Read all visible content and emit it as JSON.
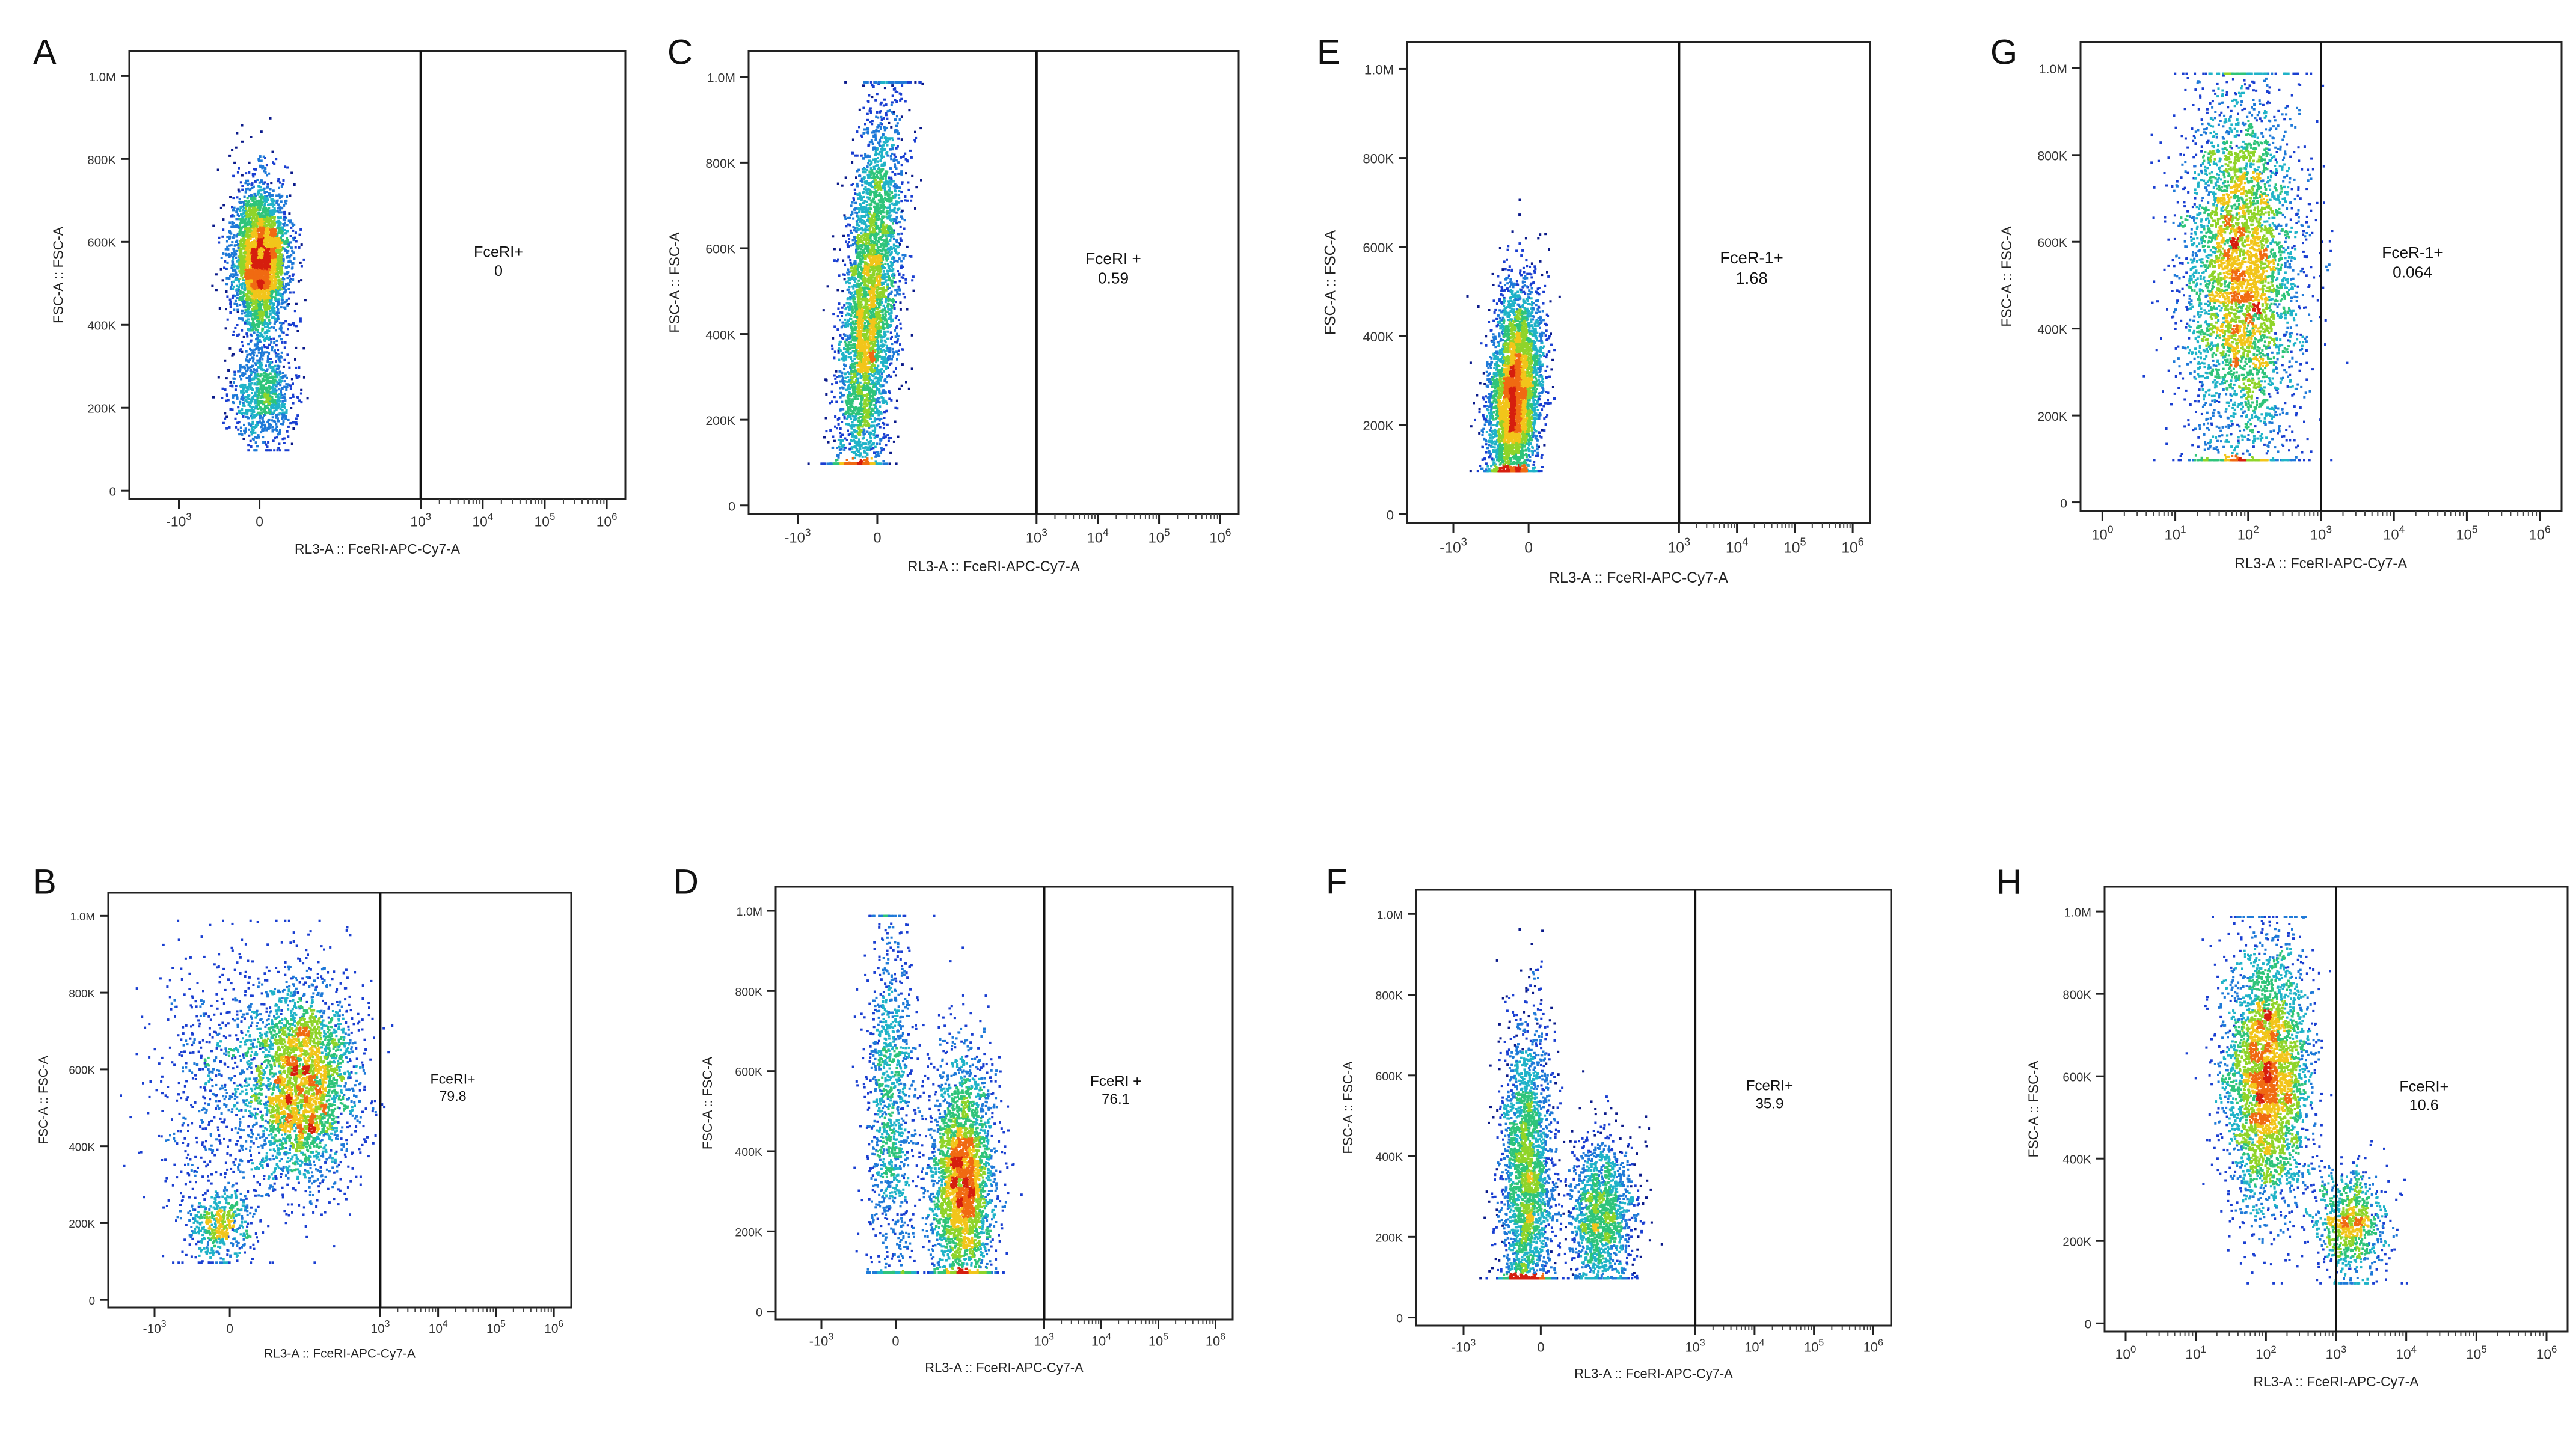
{
  "figure": {
    "description_free": true
  },
  "chart_data": [
    {
      "panel": "A",
      "type": "scatter",
      "x_label": "RL3-A :: FceRI-APC-Cy7-A",
      "y_label": "FSC-A :: FSC-A",
      "x_scale": "biex",
      "y_ticks": [
        "0",
        "200K",
        "400K",
        "600K",
        "800K",
        "1.0M"
      ],
      "y_values": [
        0,
        200000,
        400000,
        600000,
        800000,
        1000000
      ],
      "x_ticks": [
        "-10^3",
        "0",
        "10^3",
        "10^4",
        "10^5",
        "10^6"
      ],
      "gate": {
        "label": "FceRI+",
        "value": "0",
        "threshold_x": "10^3"
      },
      "populations": [
        {
          "x_center": 0.4,
          "x_sd": 0.22,
          "y_center": 560000,
          "y_sd": 90000,
          "weight": 0.8
        },
        {
          "x_center": 0.45,
          "x_sd": 0.25,
          "y_center": 230000,
          "y_sd": 60000,
          "weight": 0.2
        }
      ]
    },
    {
      "panel": "B",
      "type": "scatter",
      "x_label": "RL3-A :: FceRI-APC-Cy7-A",
      "y_label": "FSC-A :: FSC-A",
      "x_scale": "biex",
      "y_ticks": [
        "0",
        "200K",
        "400K",
        "600K",
        "800K",
        "1.0M"
      ],
      "y_values": [
        0,
        200000,
        400000,
        600000,
        800000,
        1000000
      ],
      "x_ticks": [
        "-10^3",
        "0",
        "10^3",
        "10^4",
        "10^5",
        "10^6"
      ],
      "gate": {
        "label": "FceRI+",
        "value": "79.8",
        "threshold_x": "10^3"
      },
      "populations": [
        {
          "x_center": 1.65,
          "x_sd": 0.45,
          "y_center": 570000,
          "y_sd": 130000,
          "weight": 0.7
        },
        {
          "x_center": 0.3,
          "x_sd": 0.6,
          "y_center": 550000,
          "y_sd": 170000,
          "weight": 0.18
        },
        {
          "x_center": 0.2,
          "x_sd": 0.3,
          "y_center": 200000,
          "y_sd": 50000,
          "weight": 0.12
        }
      ]
    },
    {
      "panel": "C",
      "type": "scatter",
      "x_label": "RL3-A :: FceRI-APC-Cy7-A",
      "y_label": "FSC-A :: FSC-A",
      "x_scale": "biex",
      "y_ticks": [
        "0",
        "200K",
        "400K",
        "600K",
        "800K",
        "1.0M"
      ],
      "y_values": [
        0,
        200000,
        400000,
        600000,
        800000,
        1000000
      ],
      "x_ticks": [
        "-10^3",
        "0",
        "10^3",
        "10^4",
        "10^5",
        "10^6"
      ],
      "gate": {
        "label": "FceRI +",
        "value": "0.59",
        "threshold_x": "10^3"
      },
      "populations": [
        {
          "x_center": 0.25,
          "x_sd": 0.22,
          "y_center": 450000,
          "y_sd": 240000,
          "weight": 1.0,
          "slant": 0.5
        }
      ]
    },
    {
      "panel": "D",
      "type": "scatter",
      "x_label": "RL3-A :: FceRI-APC-Cy7-A",
      "y_label": "FSC-A :: FSC-A",
      "x_scale": "biex",
      "y_ticks": [
        "0",
        "200K",
        "400K",
        "600K",
        "800K",
        "1.0M"
      ],
      "y_values": [
        0,
        200000,
        400000,
        600000,
        800000,
        1000000
      ],
      "x_ticks": [
        "-10^3",
        "0",
        "10^3",
        "10^4",
        "10^5",
        "10^6"
      ],
      "gate": {
        "label": "FceRI +",
        "value": "76.1",
        "threshold_x": "10^3"
      },
      "populations": [
        {
          "x_center": 1.55,
          "x_sd": 0.28,
          "y_center": 330000,
          "y_sd": 150000,
          "weight": 0.72
        },
        {
          "x_center": 0.3,
          "x_sd": 0.22,
          "y_center": 520000,
          "y_sd": 240000,
          "weight": 0.28
        }
      ]
    },
    {
      "panel": "E",
      "type": "scatter",
      "x_label": "RL3-A :: FceRI-APC-Cy7-A",
      "y_label": "FSC-A :: FSC-A",
      "x_scale": "biex",
      "y_ticks": [
        "0",
        "200K",
        "400K",
        "600K",
        "800K",
        "1.0M"
      ],
      "y_values": [
        0,
        200000,
        400000,
        600000,
        800000,
        1000000
      ],
      "x_ticks": [
        "-10^3",
        "0",
        "10^3",
        "10^4",
        "10^5",
        "10^6"
      ],
      "gate": {
        "label": "FceR-1+",
        "value": "1.68",
        "threshold_x": "10^3"
      },
      "populations": [
        {
          "x_center": 0.15,
          "x_sd": 0.22,
          "y_center": 270000,
          "y_sd": 120000,
          "weight": 1.0,
          "slant": 0.4
        }
      ]
    },
    {
      "panel": "F",
      "type": "scatter",
      "x_label": "RL3-A :: FceRI-APC-Cy7-A",
      "y_label": "FSC-A :: FSC-A",
      "x_scale": "biex",
      "y_ticks": [
        "0",
        "200K",
        "400K",
        "600K",
        "800K",
        "1.0M"
      ],
      "y_values": [
        0,
        200000,
        400000,
        600000,
        800000,
        1000000
      ],
      "x_ticks": [
        "-10^3",
        "0",
        "10^3",
        "10^4",
        "10^5",
        "10^6"
      ],
      "gate": {
        "label": "FceRI+",
        "value": "35.9",
        "threshold_x": "10^3"
      },
      "populations": [
        {
          "x_center": 0.15,
          "x_sd": 0.22,
          "y_center": 330000,
          "y_sd": 200000,
          "weight": 0.64
        },
        {
          "x_center": 1.4,
          "x_sd": 0.28,
          "y_center": 260000,
          "y_sd": 90000,
          "weight": 0.36
        }
      ]
    },
    {
      "panel": "G",
      "type": "scatter",
      "x_label": "RL3-A :: FceRI-APC-Cy7-A",
      "y_label": "FSC-A :: FSC-A",
      "x_scale": "log",
      "y_ticks": [
        "0",
        "200K",
        "400K",
        "600K",
        "800K",
        "1.0M"
      ],
      "y_values": [
        0,
        200000,
        400000,
        600000,
        800000,
        1000000
      ],
      "x_ticks": [
        "10^0",
        "10^1",
        "10^2",
        "10^3",
        "10^4",
        "10^5",
        "10^6"
      ],
      "gate": {
        "label": "FceR-1+",
        "value": "0.064",
        "threshold_x": "10^3"
      },
      "populations": [
        {
          "x_center": 1.9,
          "x_sd": 0.4,
          "y_center": 520000,
          "y_sd": 230000,
          "weight": 1.0
        }
      ]
    },
    {
      "panel": "H",
      "type": "scatter",
      "x_label": "RL3-A :: FceRI-APC-Cy7-A",
      "y_label": "FSC-A :: FSC-A",
      "x_scale": "log",
      "y_ticks": [
        "0",
        "200K",
        "400K",
        "600K",
        "800K",
        "1.0M"
      ],
      "y_values": [
        0,
        200000,
        400000,
        600000,
        800000,
        1000000
      ],
      "x_ticks": [
        "10^0",
        "10^1",
        "10^2",
        "10^3",
        "10^4",
        "10^5",
        "10^6"
      ],
      "gate": {
        "label": "FceRI+",
        "value": "10.6",
        "threshold_x": "10^3"
      },
      "populations": [
        {
          "x_center": 2.0,
          "x_sd": 0.3,
          "y_center": 600000,
          "y_sd": 160000,
          "weight": 0.8
        },
        {
          "x_center": 3.2,
          "x_sd": 0.25,
          "y_center": 240000,
          "y_sd": 70000,
          "weight": 0.2
        }
      ]
    }
  ]
}
